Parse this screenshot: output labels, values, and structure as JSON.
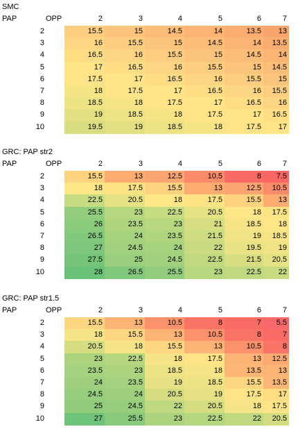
{
  "tables": [
    {
      "title": "SMC",
      "row_header": "PAP",
      "col_header": "OPP",
      "columns": [
        "2",
        "3",
        "4",
        "5",
        "6",
        "7"
      ],
      "rows": [
        {
          "label": "2",
          "values": [
            "15.5",
            "15",
            "14.5",
            "14",
            "13.5",
            "13"
          ]
        },
        {
          "label": "3",
          "values": [
            "16",
            "15.5",
            "15",
            "14.5",
            "14",
            "13.5"
          ]
        },
        {
          "label": "4",
          "values": [
            "16.5",
            "16",
            "15.5",
            "15",
            "14.5",
            "14"
          ]
        },
        {
          "label": "5",
          "values": [
            "17",
            "16.5",
            "16",
            "15.5",
            "15",
            "14.5"
          ]
        },
        {
          "label": "6",
          "values": [
            "17.5",
            "17",
            "16.5",
            "16",
            "15.5",
            "15"
          ]
        },
        {
          "label": "7",
          "values": [
            "18",
            "17.5",
            "17",
            "16.5",
            "16",
            "15.5"
          ]
        },
        {
          "label": "8",
          "values": [
            "18.5",
            "18",
            "17.5",
            "17",
            "16.5",
            "16"
          ]
        },
        {
          "label": "9",
          "values": [
            "19",
            "18.5",
            "18",
            "17.5",
            "17",
            "16.5"
          ]
        },
        {
          "label": "10",
          "values": [
            "19.5",
            "19",
            "18.5",
            "18",
            "17.5",
            "17"
          ]
        }
      ],
      "colors": [
        [
          "#fdce7f",
          "#fcc57b",
          "#fcbd78",
          "#fbb474",
          "#fbac71",
          "#faa46d"
        ],
        [
          "#fed582",
          "#fdce7f",
          "#fcc57b",
          "#fcbd78",
          "#fbb474",
          "#fbac71"
        ],
        [
          "#fedd85",
          "#fed582",
          "#fdce7f",
          "#fcc57b",
          "#fcbd78",
          "#fbb474"
        ],
        [
          "#ffe588",
          "#fedd85",
          "#fed582",
          "#fdce7f",
          "#fcc57b",
          "#fcbd78"
        ],
        [
          "#ffe389",
          "#ffe588",
          "#fedd85",
          "#fed582",
          "#fdce7f",
          "#fcc57b"
        ],
        [
          "#f6e587",
          "#ffe389",
          "#ffe588",
          "#fedd85",
          "#fed582",
          "#fdce7f"
        ],
        [
          "#ede385",
          "#f6e587",
          "#ffe389",
          "#ffe588",
          "#fedd85",
          "#fed582"
        ],
        [
          "#e3e083",
          "#ede385",
          "#f6e587",
          "#ffe389",
          "#ffe588",
          "#fedd85"
        ],
        [
          "#d9dd82",
          "#e3e083",
          "#ede385",
          "#f6e587",
          "#ffe389",
          "#ffe588"
        ]
      ]
    },
    {
      "title": "GRC: PAP str2",
      "row_header": "PAP",
      "col_header": "OPP",
      "columns": [
        "2",
        "3",
        "4",
        "5",
        "6",
        "7"
      ],
      "rows": [
        {
          "label": "2",
          "values": [
            "15.5",
            "13",
            "12.5",
            "10.5",
            "8",
            "7.5"
          ]
        },
        {
          "label": "3",
          "values": [
            "18",
            "17.5",
            "15.5",
            "13",
            "12.5",
            "10.5"
          ]
        },
        {
          "label": "4",
          "values": [
            "22.5",
            "20.5",
            "18",
            "17.5",
            "15.5",
            "13"
          ]
        },
        {
          "label": "5",
          "values": [
            "25.5",
            "23",
            "22.5",
            "20.5",
            "18",
            "17.5"
          ]
        },
        {
          "label": "6",
          "values": [
            "26",
            "23.5",
            "23",
            "21",
            "18.5",
            "18"
          ]
        },
        {
          "label": "7",
          "values": [
            "26.5",
            "24",
            "23.5",
            "21.5",
            "19",
            "18.5"
          ]
        },
        {
          "label": "8",
          "values": [
            "27",
            "24.5",
            "24",
            "22",
            "19.5",
            "19"
          ]
        },
        {
          "label": "9",
          "values": [
            "27.5",
            "25",
            "24.5",
            "22.5",
            "21.5",
            "20.5"
          ]
        },
        {
          "label": "10",
          "values": [
            "28",
            "26.5",
            "25.5",
            "23",
            "22.5",
            "22"
          ]
        }
      ],
      "colors": [
        [
          "#fdd380",
          "#fcab71",
          "#fba570",
          "#fa8b6a",
          "#f86b64",
          "#f86763"
        ],
        [
          "#ffe788",
          "#fee385",
          "#fdd380",
          "#fcab71",
          "#fba570",
          "#fa8b6a"
        ],
        [
          "#c5dc80",
          "#e4e283",
          "#ffe788",
          "#fee385",
          "#fdd380",
          "#fcab71"
        ],
        [
          "#92cd7d",
          "#b7d87f",
          "#c5dc80",
          "#e4e283",
          "#ffe788",
          "#fee385"
        ],
        [
          "#8bcc7c",
          "#b0d57f",
          "#b7d87f",
          "#d6de81",
          "#f7e486",
          "#ffe788"
        ],
        [
          "#83c97c",
          "#a8d37e",
          "#b0d57f",
          "#cfdc81",
          "#f0e385",
          "#f7e486"
        ],
        [
          "#7cc77b",
          "#a1d17e",
          "#a8d37e",
          "#c9da80",
          "#e8e284",
          "#f0e385"
        ],
        [
          "#74c57a",
          "#9ad07d",
          "#a1d17e",
          "#c0d980",
          "#d6de81",
          "#e4e283"
        ],
        [
          "#68c379",
          "#83c97c",
          "#92cd7d",
          "#b7d87f",
          "#c0d980",
          "#c9da80"
        ]
      ]
    },
    {
      "title": "GRC: PAP str1.5",
      "row_header": "PAP",
      "col_header": "OPP",
      "columns": [
        "2",
        "3",
        "4",
        "5",
        "6",
        "7"
      ],
      "rows": [
        {
          "label": "2",
          "values": [
            "15.5",
            "13",
            "10.5",
            "8",
            "7",
            "5.5"
          ]
        },
        {
          "label": "3",
          "values": [
            "18",
            "15.5",
            "13",
            "10.5",
            "8",
            "7"
          ]
        },
        {
          "label": "4",
          "values": [
            "20.5",
            "18",
            "15.5",
            "13",
            "10.5",
            "8"
          ]
        },
        {
          "label": "5",
          "values": [
            "23",
            "22.5",
            "18",
            "17.5",
            "13",
            "12.5"
          ]
        },
        {
          "label": "6",
          "values": [
            "23.5",
            "23",
            "18.5",
            "18",
            "13.5",
            "13"
          ]
        },
        {
          "label": "7",
          "values": [
            "24",
            "23.5",
            "19",
            "18.5",
            "15.5",
            "13.5"
          ]
        },
        {
          "label": "8",
          "values": [
            "24.5",
            "24",
            "20.5",
            "19",
            "17.5",
            "17"
          ]
        },
        {
          "label": "9",
          "values": [
            "25",
            "24.5",
            "22",
            "20.5",
            "18",
            "17.5"
          ]
        },
        {
          "label": "10",
          "values": [
            "27",
            "25.5",
            "23",
            "22.5",
            "22",
            "20.5"
          ]
        }
      ],
      "colors": [
        [
          "#fed682",
          "#fcb476",
          "#fb926c",
          "#f97467",
          "#f86c65",
          "#f8696b"
        ],
        [
          "#f6e588",
          "#fed682",
          "#fcb476",
          "#fb926c",
          "#f97467",
          "#f86c65"
        ],
        [
          "#d4de81",
          "#f6e588",
          "#fed682",
          "#fcb476",
          "#fb926c",
          "#f97467"
        ],
        [
          "#acd47e",
          "#b4d77f",
          "#f6e588",
          "#fee487",
          "#fcb476",
          "#fcaa72"
        ],
        [
          "#a5d27e",
          "#acd47e",
          "#ede385",
          "#f6e588",
          "#fcb777",
          "#fcb476"
        ],
        [
          "#9ed07d",
          "#a5d27e",
          "#e5e184",
          "#ede385",
          "#fed682",
          "#fcb777"
        ],
        [
          "#97ce7c",
          "#9ed07d",
          "#d4de81",
          "#e5e184",
          "#fee487",
          "#fedc84"
        ],
        [
          "#90cc7c",
          "#97ce7c",
          "#bfd980",
          "#d4de81",
          "#f6e588",
          "#fee487"
        ],
        [
          "#6ec57a",
          "#88ca7c",
          "#acd47e",
          "#b4d77f",
          "#bfd980",
          "#d4de81"
        ]
      ]
    }
  ]
}
